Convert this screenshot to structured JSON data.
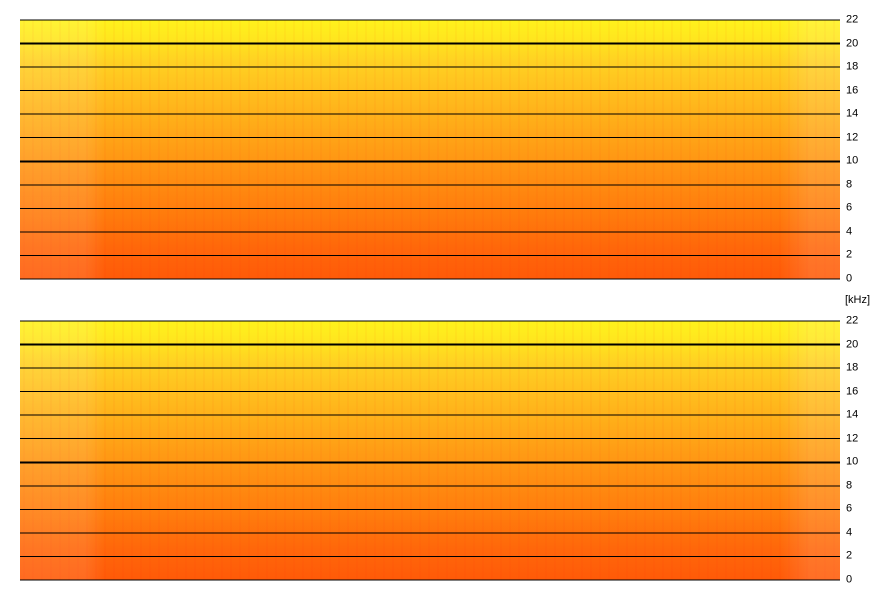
{
  "unit_label": "[kHz]",
  "y_axis": {
    "min": 0,
    "max": 22,
    "ticks": [
      22,
      20,
      18,
      16,
      14,
      12,
      10,
      8,
      6,
      4,
      2,
      0
    ],
    "major_lines": [
      20,
      10
    ]
  },
  "colors": {
    "line": "#000000",
    "high_freq": "#fff21c",
    "low_freq": "#ff5a08"
  },
  "panels": [
    {
      "id": "top"
    },
    {
      "id": "bottom"
    }
  ]
}
